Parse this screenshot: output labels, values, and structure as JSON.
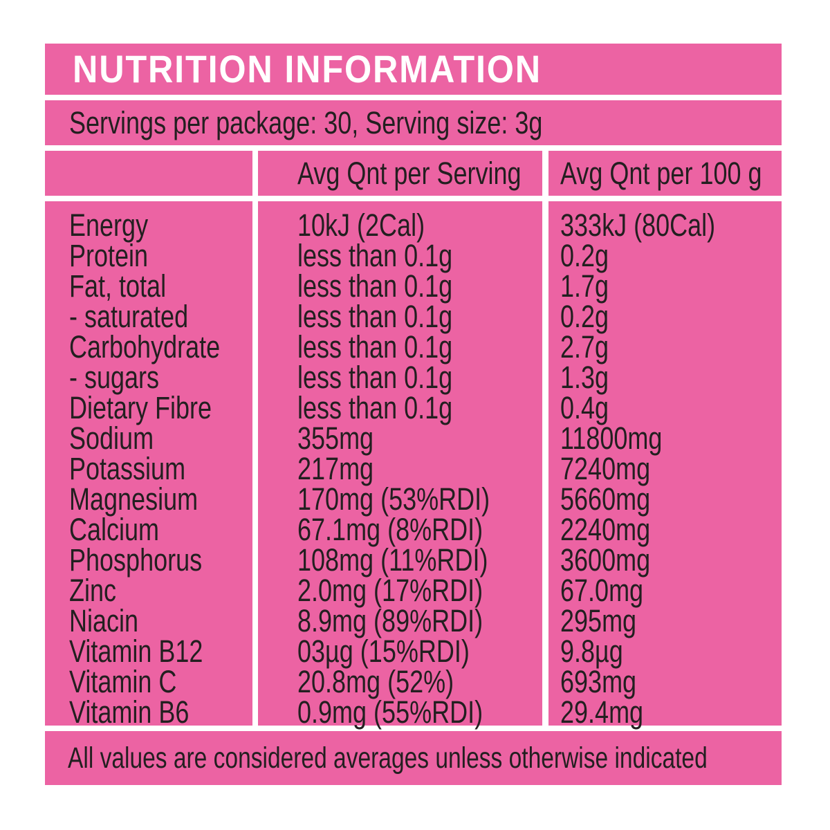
{
  "colors": {
    "background_pink": "#EC63A3",
    "text_ink": "#231F20",
    "title_text": "#FFFFFF",
    "divider": "#FFFFFF"
  },
  "title": "NUTRITION INFORMATION",
  "servings_line": "Servings per package: 30, Serving size: 3g",
  "table": {
    "columns": [
      "",
      "Avg Qnt per Serving",
      "Avg Qnt per 100 g"
    ],
    "rows": [
      {
        "nutrient": "Energy",
        "per_serving": "10kJ (2Cal)",
        "per_100g": "333kJ (80Cal)"
      },
      {
        "nutrient": "Protein",
        "per_serving": "less than 0.1g",
        "per_100g": "0.2g"
      },
      {
        "nutrient": "Fat, total",
        "per_serving": "less than 0.1g",
        "per_100g": "1.7g"
      },
      {
        "nutrient": "- saturated",
        "per_serving": "less than 0.1g",
        "per_100g": "0.2g"
      },
      {
        "nutrient": "Carbohydrate",
        "per_serving": "less than 0.1g",
        "per_100g": "2.7g"
      },
      {
        "nutrient": "- sugars",
        "per_serving": "less than 0.1g",
        "per_100g": "1.3g"
      },
      {
        "nutrient": "Dietary Fibre",
        "per_serving": "less than 0.1g",
        "per_100g": "0.4g"
      },
      {
        "nutrient": "Sodium",
        "per_serving": "355mg",
        "per_100g": "11800mg"
      },
      {
        "nutrient": "Potassium",
        "per_serving": "217mg",
        "per_100g": "7240mg"
      },
      {
        "nutrient": "Magnesium",
        "per_serving": "170mg (53%RDI)",
        "per_100g": "5660mg"
      },
      {
        "nutrient": "Calcium",
        "per_serving": "67.1mg (8%RDI)",
        "per_100g": "2240mg"
      },
      {
        "nutrient": "Phosphorus",
        "per_serving": "108mg (11%RDI)",
        "per_100g": "3600mg"
      },
      {
        "nutrient": "Zinc",
        "per_serving": "2.0mg (17%RDI)",
        "per_100g": "67.0mg"
      },
      {
        "nutrient": "Niacin",
        "per_serving": "8.9mg (89%RDI)",
        "per_100g": "295mg"
      },
      {
        "nutrient": "Vitamin B12",
        "per_serving": "03µg (15%RDI)",
        "per_100g": "9.8µg"
      },
      {
        "nutrient": "Vitamin C",
        "per_serving": "20.8mg (52%)",
        "per_100g": "693mg"
      },
      {
        "nutrient": "Vitamin B6",
        "per_serving": "0.9mg (55%RDI)",
        "per_100g": "29.4mg"
      }
    ]
  },
  "footer": "All values are considered averages unless otherwise indicated"
}
